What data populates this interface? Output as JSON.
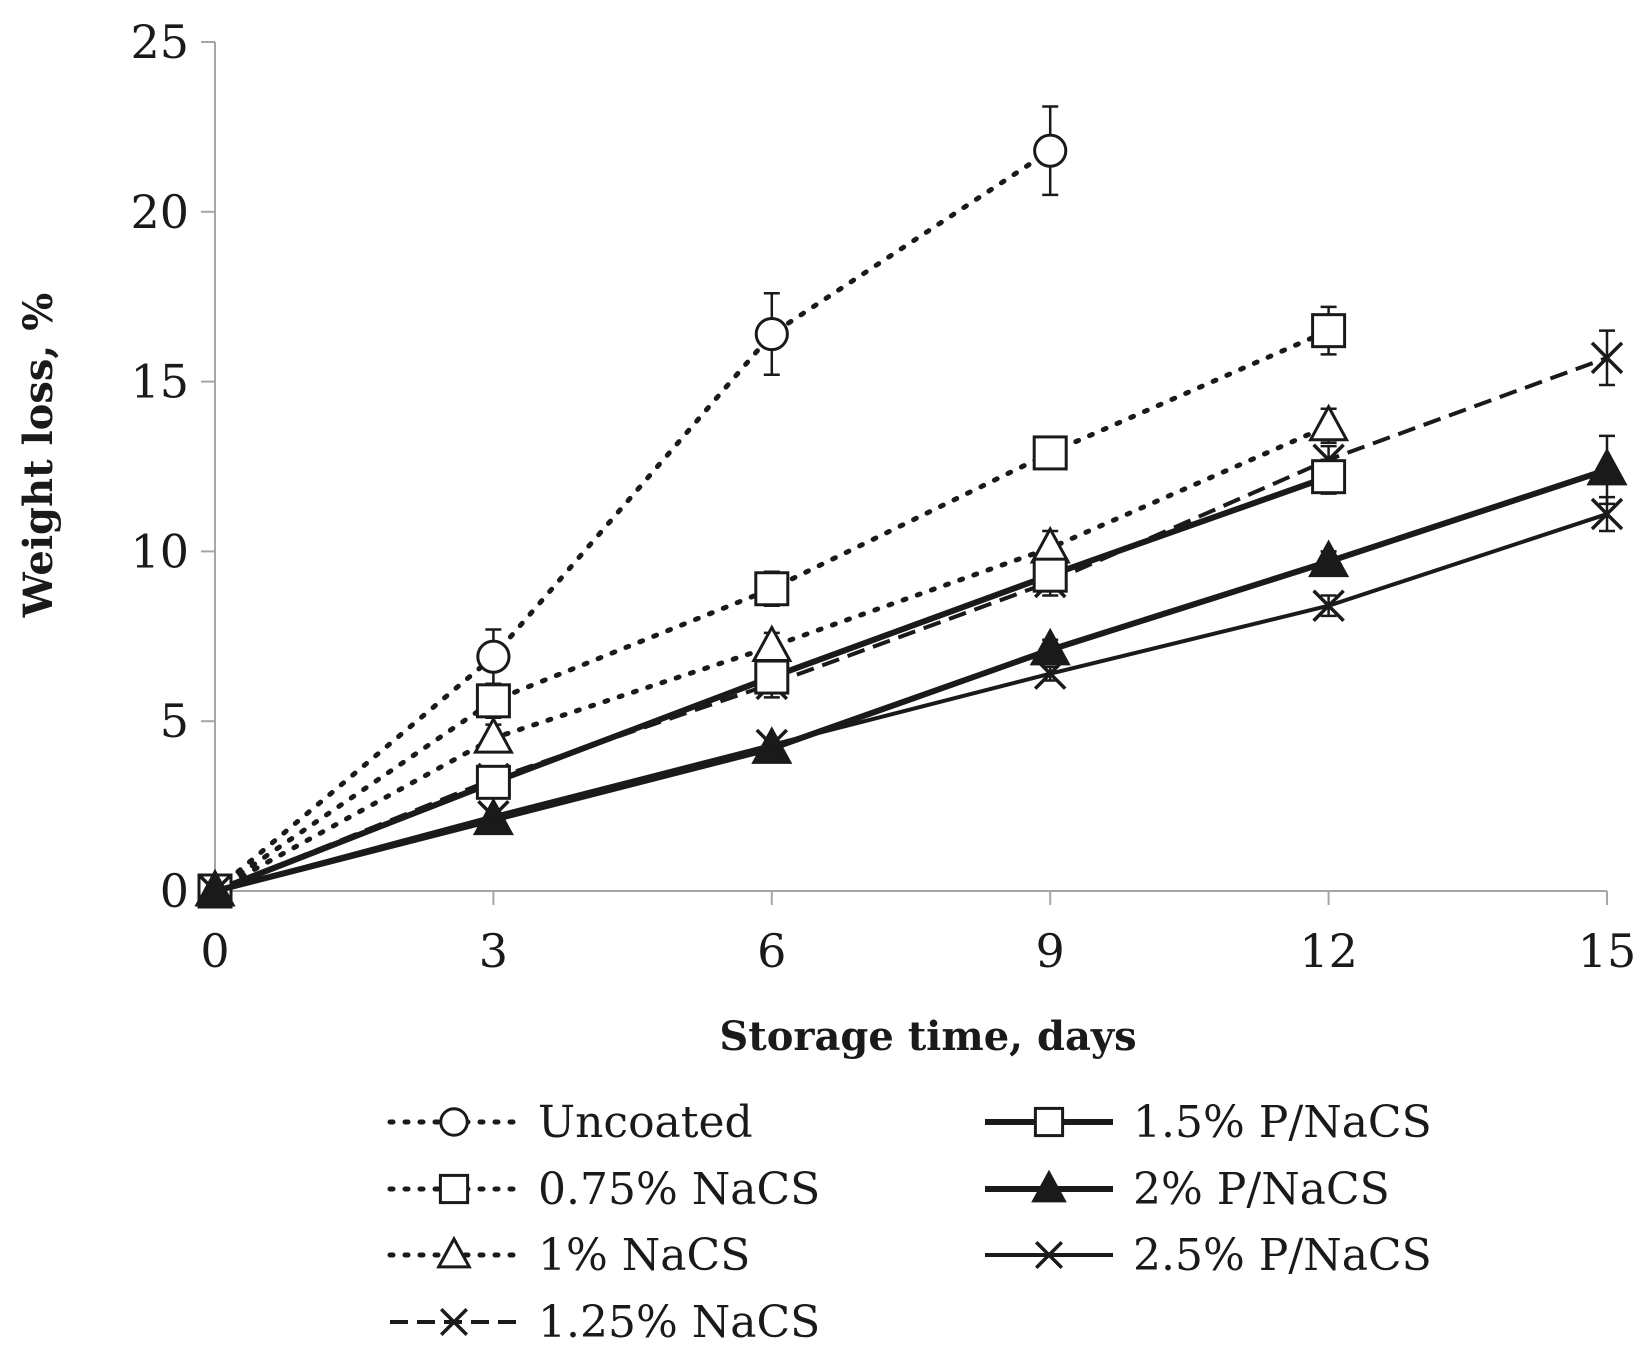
{
  "chart_data": {
    "type": "line",
    "title": "",
    "xlabel": "Storage time, days",
    "ylabel": "Weight loss, %",
    "xlim": [
      0,
      15
    ],
    "ylim": [
      0,
      25
    ],
    "xticks": [
      "0",
      "3",
      "6",
      "9",
      "12",
      "15"
    ],
    "yticks": [
      "0",
      "5",
      "10",
      "15",
      "20",
      "25"
    ],
    "grid": false,
    "legend_position": "bottom",
    "series": [
      {
        "name": "Uncoated",
        "style": "dotted",
        "marker": "circle-open",
        "x": [
          0,
          3,
          6,
          9
        ],
        "y": [
          0,
          6.9,
          16.4,
          21.8
        ],
        "err": [
          0,
          0.8,
          1.2,
          1.3
        ]
      },
      {
        "name": "0.75% NaCS",
        "style": "dotted",
        "marker": "square-open",
        "x": [
          0,
          3,
          6,
          9,
          12
        ],
        "y": [
          0,
          5.6,
          8.9,
          12.9,
          16.5
        ],
        "err": [
          0,
          0.5,
          0.5,
          0.4,
          0.7
        ]
      },
      {
        "name": "1% NaCS",
        "style": "dotted",
        "marker": "triangle-open",
        "x": [
          0,
          3,
          6,
          9,
          12
        ],
        "y": [
          0,
          4.5,
          7.2,
          10.1,
          13.7
        ],
        "err": [
          0,
          0.4,
          0.4,
          0.5,
          0.5
        ]
      },
      {
        "name": "1.25% NaCS",
        "style": "dashed",
        "marker": "x",
        "x": [
          0,
          3,
          6,
          9,
          12,
          15
        ],
        "y": [
          0,
          3.3,
          6.1,
          9.1,
          12.7,
          15.7
        ],
        "err": [
          0,
          0.3,
          0.4,
          0.4,
          0.4,
          0.8
        ]
      },
      {
        "name": "1.5% P/NaCS",
        "style": "solid-thick",
        "marker": "square-open",
        "x": [
          0,
          3,
          6,
          9,
          12
        ],
        "y": [
          0,
          3.2,
          6.3,
          9.3,
          12.2
        ],
        "err": [
          0,
          0.3,
          0.4,
          0.4,
          0.5
        ]
      },
      {
        "name": "2% P/NaCS",
        "style": "solid-thick",
        "marker": "triangle-filled",
        "x": [
          0,
          3,
          6,
          9,
          12,
          15
        ],
        "y": [
          0,
          2.1,
          4.2,
          7.1,
          9.7,
          12.4
        ],
        "err": [
          0,
          0.2,
          0.2,
          0.3,
          0.3,
          1.0
        ]
      },
      {
        "name": "2.5% P/NaCS",
        "style": "solid",
        "marker": "x",
        "x": [
          0,
          3,
          6,
          9,
          12,
          15
        ],
        "y": [
          0,
          2.2,
          4.3,
          6.4,
          8.4,
          11.1
        ],
        "err": [
          0,
          0.2,
          0.2,
          0.2,
          0.3,
          0.5
        ]
      }
    ]
  }
}
